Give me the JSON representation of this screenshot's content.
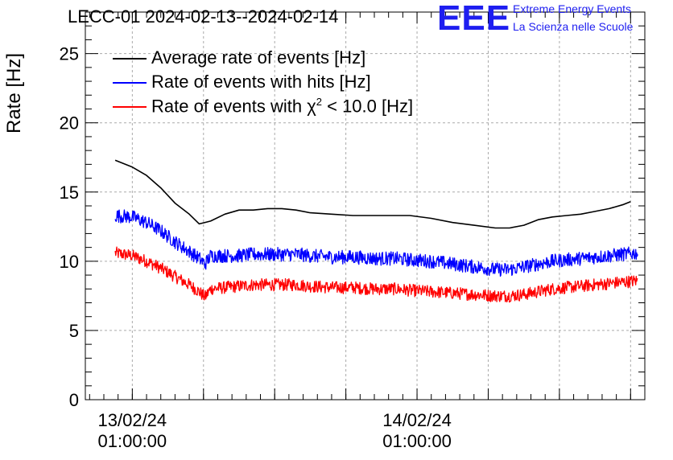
{
  "header": {
    "title": "LECC-01 2024-02-13--2024-02-14",
    "logo_text": "EEE",
    "logo_line1": "Extreme Energy Events",
    "logo_line2": "La Scienza nelle Scuole"
  },
  "colors": {
    "logo": "#1e1ef0",
    "average": "#000000",
    "hits": "#0000ff",
    "chi2": "#ff0000",
    "grid": "#aaaaaa"
  },
  "chart_data": {
    "type": "line",
    "ylabel": "Rate [Hz]",
    "xlabel": "",
    "ylim": [
      0,
      28
    ],
    "yticks": [
      0,
      5,
      10,
      15,
      20,
      25
    ],
    "grid": true,
    "legend_position": "top-left",
    "x_unit": "hours since 13/02/24 00:00:00",
    "xlim": [
      -2.3,
      37.0
    ],
    "xtick_labels": [
      {
        "x": 1,
        "line1": "13/02/24",
        "line2": "01:00:00"
      },
      {
        "x": 21,
        "line1": "14/02/24",
        "line2": "01:00:00"
      }
    ],
    "minor_xticks": [
      1,
      6,
      11,
      16,
      21,
      26,
      31,
      36
    ],
    "series": [
      {
        "name": "Average rate of events [Hz]",
        "color": "#000000",
        "x": [
          -0.2,
          1.0,
          2.0,
          3.0,
          4.0,
          5.0,
          5.7,
          6.5,
          7.5,
          8.5,
          9.5,
          10.5,
          11.5,
          12.5,
          13.5,
          15.0,
          16.5,
          18.0,
          19.5,
          20.5,
          22.0,
          23.5,
          25.0,
          26.5,
          27.5,
          28.5,
          29.5,
          30.5,
          31.5,
          32.5,
          33.5,
          34.5,
          35.5,
          36.0
        ],
        "y": [
          17.3,
          16.8,
          16.2,
          15.3,
          14.2,
          13.4,
          12.7,
          12.9,
          13.4,
          13.7,
          13.7,
          13.8,
          13.8,
          13.7,
          13.5,
          13.4,
          13.3,
          13.3,
          13.3,
          13.3,
          13.1,
          12.8,
          12.6,
          12.4,
          12.4,
          12.6,
          13.0,
          13.2,
          13.3,
          13.4,
          13.6,
          13.8,
          14.1,
          14.3
        ]
      },
      {
        "name": "Rate of events with hits [Hz]",
        "color": "#0000ff",
        "x": [
          -0.2,
          1.0,
          2.0,
          3.0,
          4.0,
          5.0,
          5.7,
          6.1,
          6.5,
          7.5,
          8.5,
          9.5,
          10.5,
          11.5,
          12.5,
          13.5,
          15.0,
          16.5,
          18.0,
          19.5,
          20.5,
          22.0,
          23.5,
          25.0,
          26.5,
          27.5,
          28.5,
          29.5,
          30.5,
          31.5,
          32.5,
          33.5,
          34.5,
          35.5,
          36.5
        ],
        "y": [
          13.3,
          13.2,
          12.8,
          12.2,
          11.4,
          10.7,
          10.2,
          9.8,
          10.4,
          10.4,
          10.4,
          10.5,
          10.5,
          10.5,
          10.5,
          10.4,
          10.3,
          10.3,
          10.2,
          10.2,
          10.1,
          10.0,
          9.8,
          9.6,
          9.4,
          9.4,
          9.6,
          9.8,
          10.0,
          10.1,
          10.2,
          10.3,
          10.4,
          10.5,
          10.6
        ],
        "noise": 0.5
      },
      {
        "name": "Rate of events with χ² < 10.0 [Hz]",
        "legend_prefix": "Rate of events with χ",
        "legend_sup": "2",
        "legend_suffix": " < 10.0 [Hz]",
        "color": "#ff0000",
        "x": [
          -0.2,
          1.0,
          2.0,
          3.0,
          4.0,
          5.0,
          5.7,
          6.1,
          6.5,
          7.5,
          8.5,
          9.5,
          10.5,
          11.5,
          12.5,
          13.5,
          15.0,
          16.5,
          18.0,
          19.5,
          20.5,
          22.0,
          23.5,
          25.0,
          26.5,
          27.5,
          28.5,
          29.5,
          30.5,
          31.5,
          32.5,
          33.5,
          34.5,
          35.5,
          36.5
        ],
        "y": [
          10.6,
          10.4,
          10.0,
          9.5,
          8.9,
          8.3,
          7.8,
          7.4,
          8.0,
          8.1,
          8.2,
          8.3,
          8.3,
          8.3,
          8.3,
          8.2,
          8.1,
          8.1,
          8.0,
          8.0,
          7.9,
          7.8,
          7.7,
          7.6,
          7.5,
          7.5,
          7.6,
          7.8,
          8.0,
          8.1,
          8.2,
          8.3,
          8.4,
          8.5,
          8.6
        ],
        "noise": 0.45
      }
    ]
  }
}
